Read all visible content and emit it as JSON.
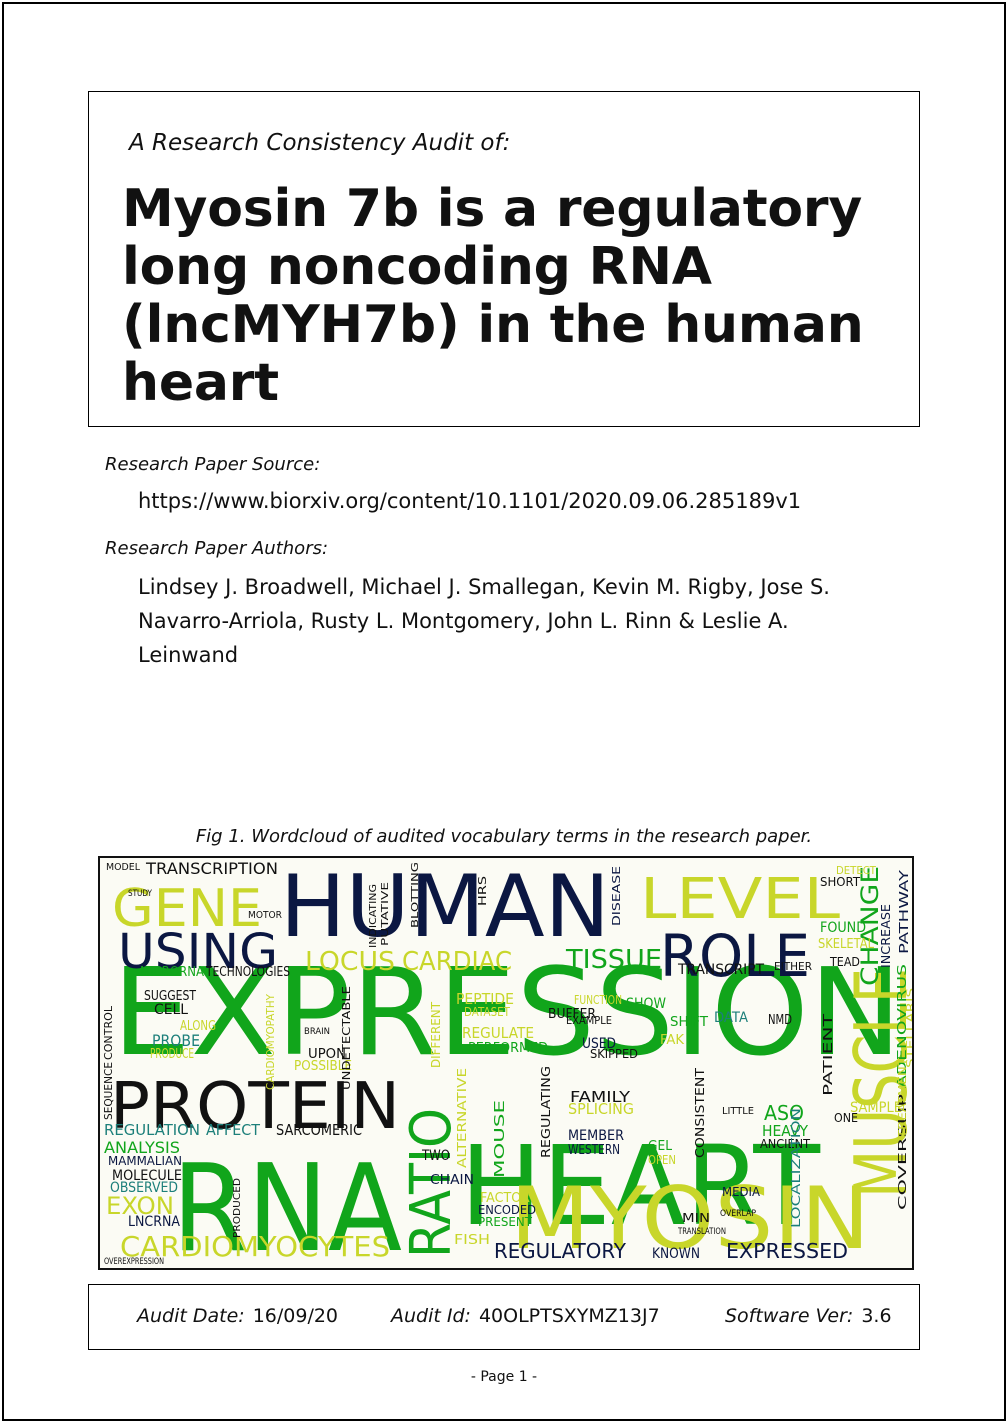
{
  "header": {
    "kicker": "A Research Consistency Audit of:",
    "title": "Myosin 7b is a regulatory long noncoding RNA (lncMYH7b) in the human heart"
  },
  "source": {
    "label": "Research Paper Source:",
    "url": "https://www.biorxiv.org/content/10.1101/2020.09.06.285189v1"
  },
  "authors": {
    "label": "Research Paper Authors:",
    "text": "Lindsey J. Broadwell, Michael J. Smallegan, Kevin M. Rigby, Jose S. Navarro-Arriola, Rusty L. Montgomery, John L. Rinn & Leslie A. Leinwand"
  },
  "figure": {
    "caption": "Fig 1. Wordcloud of audited vocabulary terms in the research paper.",
    "words": [
      "EXPRESSION",
      "HUMAN",
      "HEART",
      "RNA",
      "PROTEIN",
      "MYOSIN",
      "GENE",
      "LEVEL",
      "USING",
      "ROLE",
      "MUSCLE",
      "RATIO",
      "TISSUE",
      "LOCUS",
      "CARDIAC",
      "CHANGE",
      "CARDIOMYOCYTES",
      "REGULATORY",
      "EXPRESSED",
      "TRANSCRIPTION",
      "TRANSCRIPT",
      "MICRORNA",
      "TECHNOLOGIES",
      "REGULATION",
      "AFFECT",
      "SARCOMERIC",
      "ANALYSIS",
      "MAMMALIAN",
      "MOLECULE",
      "OBSERVED",
      "EXON",
      "LNCRNA",
      "PROBE",
      "PRODUCE",
      "SUGGEST",
      "CELL",
      "ALONG",
      "UPON",
      "POSSIBLE",
      "PEPTIDE",
      "DATASET",
      "REGULATE",
      "PERFORMED",
      "USED",
      "SKIPPED",
      "FAMILY",
      "SPLICING",
      "MEMBER",
      "WESTERN",
      "TWO",
      "CHAIN",
      "FACTOR",
      "ENCODED",
      "PRESENT",
      "FISH",
      "KNOWN",
      "GEL",
      "OPEN",
      "ASO",
      "HEAVY",
      "ANCIENT",
      "SAMPLE",
      "ONE",
      "MEDIA",
      "MIN",
      "SHOW",
      "SHIFT",
      "DATA",
      "FOUND",
      "SKELETAL",
      "PATHWAY",
      "INCREASE",
      "ADENOVIRUS",
      "PATIENT",
      "COVERSLIP",
      "TREATMENT",
      "LOCALIZATION",
      "CONSISTENT",
      "ALTERNATIVE",
      "MOUSE",
      "REGULATING",
      "DIFFERENT",
      "UNDETECTABLE",
      "CARDIOMYOPATHY",
      "CONTROL",
      "SEQUENCE",
      "OVEREXPRESSION",
      "PRODUCED",
      "BUFFER",
      "EXAMPLE",
      "TEAD",
      "EITHER",
      "DETECT",
      "SHORT",
      "DISEASE",
      "HRS",
      "INDICATING",
      "BLOTTING",
      "PUTATIVE",
      "MODEL",
      "STUDY",
      "MOTOR",
      "BRAIN",
      "LITTLE",
      "FUNCTION",
      "FAK",
      "NMD",
      "STELLARIS",
      "TRANSLATION",
      "OVERLAP"
    ]
  },
  "footer": {
    "audit_date_label": "Audit Date:",
    "audit_date": "16/09/20",
    "audit_id_label": "Audit Id:",
    "audit_id": "40OLPTSXYMZ13J7",
    "software_label": "Software Ver:",
    "software_ver": "3.6"
  },
  "page": "-  Page 1  -",
  "palette": {
    "dark_navy": "#0b1742",
    "green": "#11a51b",
    "lime": "#c8d62a",
    "teal": "#1c7f7a",
    "black": "#111111"
  }
}
